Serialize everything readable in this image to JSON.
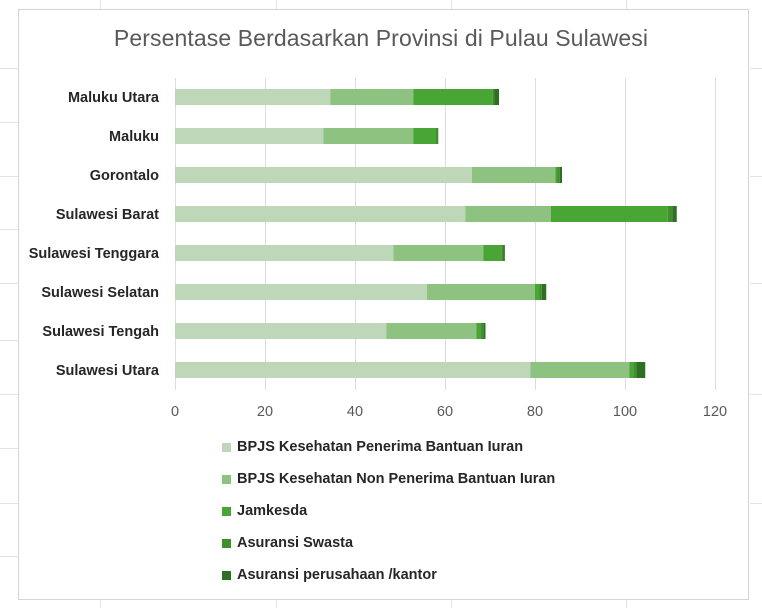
{
  "chart_data": {
    "type": "bar",
    "orientation": "horizontal",
    "stacked": true,
    "title": "Persentase Berdasarkan Provinsi di Pulau Sulawesi",
    "categories": [
      "Sulawesi Utara",
      "Sulawesi Tengah",
      "Sulawesi Selatan",
      "Sulawesi Tenggara",
      "Sulawesi Barat",
      "Gorontalo",
      "Maluku",
      "Maluku Utara"
    ],
    "series": [
      {
        "name": "BPJS Kesehatan Penerima Bantuan Iuran",
        "color": "#bdd7b8",
        "values": [
          79,
          47,
          56,
          48.5,
          64.5,
          66,
          33,
          34.5
        ]
      },
      {
        "name": "BPJS Kesehatan Non Penerima Bantuan Iuran",
        "color": "#8dc281",
        "values": [
          22,
          20,
          24,
          20,
          19,
          18.5,
          20,
          18.5
        ]
      },
      {
        "name": "Jamkesda",
        "color": "#4aa634",
        "values": [
          1,
          1,
          1,
          4,
          26,
          0.5,
          5,
          17.5
        ]
      },
      {
        "name": "Asuransi Swasta",
        "color": "#3f8f2d",
        "values": [
          0.5,
          0.5,
          0.5,
          0.5,
          1,
          0.5,
          0.3,
          0.5
        ]
      },
      {
        "name": "Asuransi perusahaan /kantor",
        "color": "#2f6f23",
        "values": [
          2,
          0.5,
          1,
          0.3,
          1,
          0.5,
          0.2,
          1
        ]
      }
    ],
    "xlim": [
      0,
      120
    ],
    "x_ticks": [
      "0",
      "20",
      "40",
      "60",
      "80",
      "100",
      "120"
    ],
    "grid": "vertical",
    "legend_position": "bottom"
  }
}
